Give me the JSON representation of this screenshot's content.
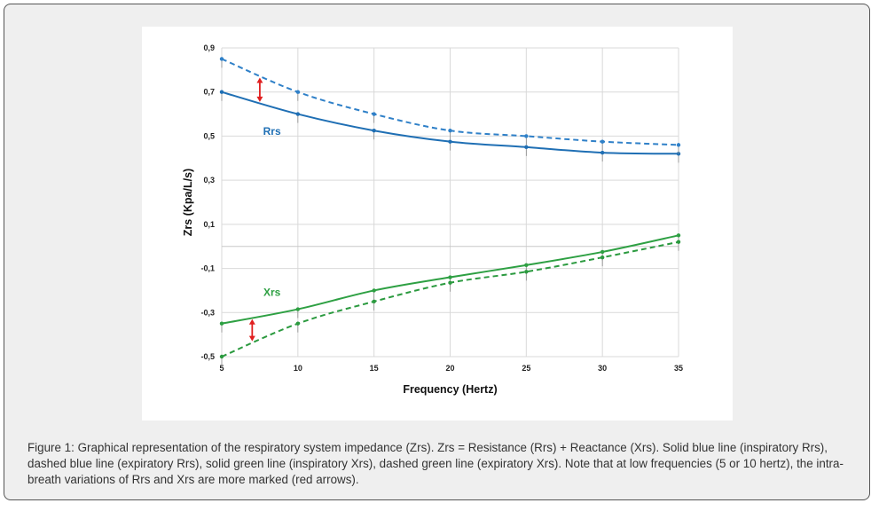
{
  "caption": "Figure 1: Graphical representation of the respiratory system impedance (Zrs). Zrs = Resistance (Rrs) + Reactance (Xrs). Solid blue line (inspiratory Rrs), dashed blue line (expiratory Rrs), solid green line (inspiratory Xrs), dashed green line (expiratory Xrs). Note that at low frequencies (5 or 10 hertz), the intra-breath variations of Rrs and Xrs are more marked (red arrows).",
  "chart_data": {
    "type": "line",
    "xlabel": "Frequency (Hertz)",
    "ylabel": "Zrs (Kpa/L/s)",
    "x": [
      5,
      10,
      15,
      20,
      25,
      30,
      35
    ],
    "x_ticks": [
      "5",
      "10",
      "15",
      "20",
      "25",
      "30",
      "35"
    ],
    "y_ticks": [
      {
        "value": 0.9,
        "label": "0,9"
      },
      {
        "value": 0.7,
        "label": "0,7"
      },
      {
        "value": 0.5,
        "label": "0,5"
      },
      {
        "value": 0.3,
        "label": "0,3"
      },
      {
        "value": 0.1,
        "label": "0,1"
      },
      {
        "value": -0.1,
        "label": "-0,1"
      },
      {
        "value": -0.3,
        "label": "-0,3"
      },
      {
        "value": -0.5,
        "label": "-0,5"
      }
    ],
    "xlim": [
      5,
      35
    ],
    "ylim": [
      -0.5,
      0.9
    ],
    "grid": true,
    "series": [
      {
        "key": "rrs-insp",
        "color": "#1f6fb4",
        "dashed": false,
        "values": [
          0.7,
          0.6,
          0.525,
          0.475,
          0.45,
          0.425,
          0.42
        ]
      },
      {
        "key": "rrs-exp",
        "color": "#2f80c8",
        "dashed": true,
        "values": [
          0.85,
          0.7,
          0.6,
          0.525,
          0.5,
          0.475,
          0.46
        ]
      },
      {
        "key": "xrs-insp",
        "color": "#2ea043",
        "dashed": false,
        "values": [
          -0.35,
          -0.285,
          -0.2,
          -0.14,
          -0.085,
          -0.025,
          0.05
        ]
      },
      {
        "key": "xrs-exp",
        "color": "#2b9a3f",
        "dashed": true,
        "values": [
          -0.5,
          -0.35,
          -0.25,
          -0.165,
          -0.115,
          -0.05,
          0.02
        ]
      }
    ],
    "annotations": [
      {
        "text": "Rrs",
        "x": 8.3,
        "y": 0.505,
        "color": "#1f6fb4"
      },
      {
        "text": "Xrs",
        "x": 8.3,
        "y": -0.225,
        "color": "#2ea043"
      }
    ],
    "arrows": [
      {
        "x": 7.5,
        "y_from": 0.655,
        "y_to": 0.765,
        "color": "#e02020"
      },
      {
        "x": 7.0,
        "y_from": -0.33,
        "y_to": -0.43,
        "color": "#e02020"
      }
    ]
  }
}
